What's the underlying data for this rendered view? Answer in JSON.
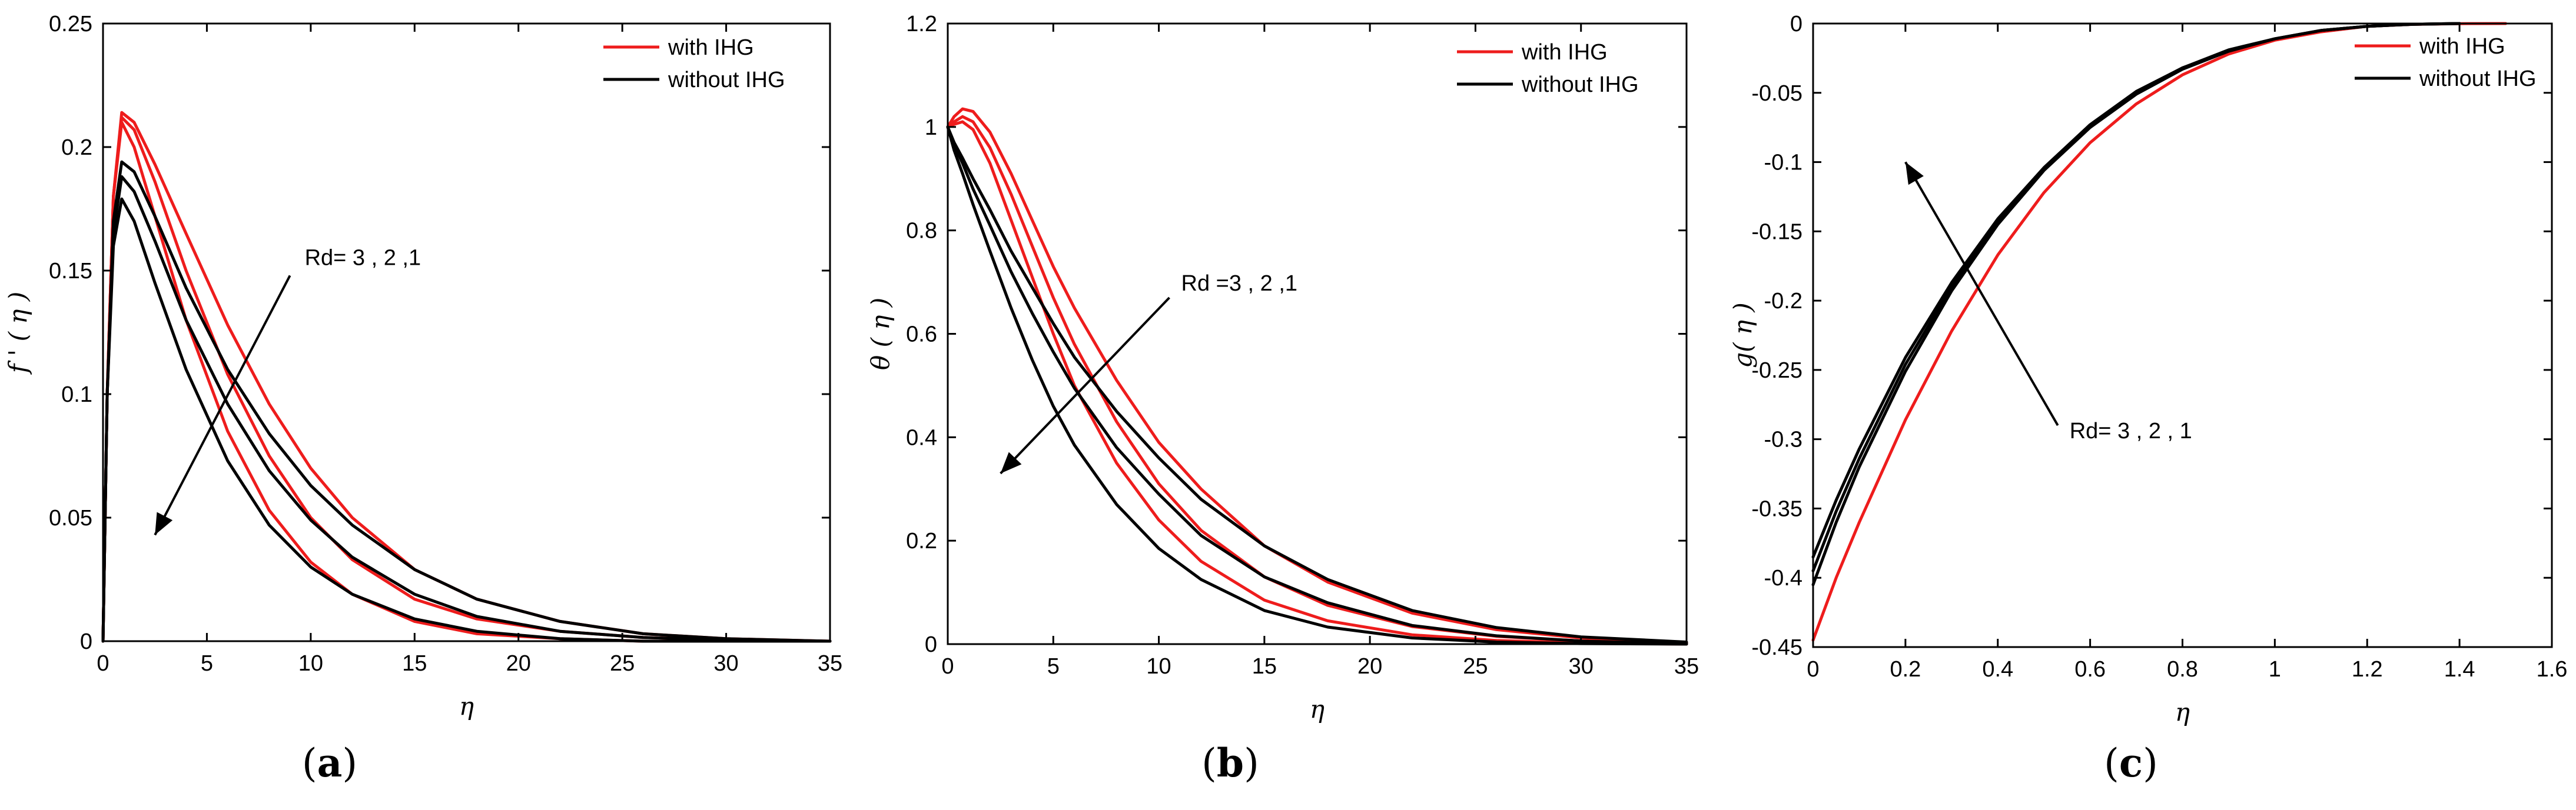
{
  "chart_data": [
    {
      "panel": "a",
      "type": "line",
      "caption_letter": "a",
      "xlabel": "η",
      "ylabel": "f ' ( η )",
      "xlim": [
        0,
        35
      ],
      "ylim": [
        0,
        0.25
      ],
      "xticks": [
        0,
        5,
        10,
        15,
        20,
        25,
        30,
        35
      ],
      "yticks": [
        0,
        0.05,
        0.1,
        0.15,
        0.2,
        0.25
      ],
      "legend": [
        {
          "label": "with IHG",
          "color": "#ee1c1c"
        },
        {
          "label": "without IHG",
          "color": "#000000"
        }
      ],
      "annotation": {
        "text": "Rd= 3 , 2 ,1",
        "arrow_from": [
          9.0,
          0.148
        ],
        "arrow_to": [
          2.5,
          0.043
        ]
      },
      "series": [
        {
          "name": "with IHG, Rd=3",
          "color": "#ee1c1c",
          "x": [
            0,
            0.2,
            0.5,
            0.9,
            1.5,
            2.5,
            4,
            6,
            8,
            10,
            12,
            15,
            18,
            22,
            26,
            30,
            35
          ],
          "y": [
            0,
            0.1,
            0.18,
            0.214,
            0.21,
            0.193,
            0.165,
            0.128,
            0.096,
            0.07,
            0.05,
            0.029,
            0.017,
            0.008,
            0.003,
            0.001,
            0
          ]
        },
        {
          "name": "with IHG, Rd=2",
          "color": "#ee1c1c",
          "x": [
            0,
            0.2,
            0.5,
            0.9,
            1.5,
            2.5,
            4,
            6,
            8,
            10,
            12,
            15,
            18,
            22,
            26,
            30,
            35
          ],
          "y": [
            0,
            0.1,
            0.18,
            0.212,
            0.207,
            0.186,
            0.15,
            0.108,
            0.075,
            0.05,
            0.033,
            0.017,
            0.009,
            0.004,
            0.0015,
            0.0005,
            0
          ]
        },
        {
          "name": "with IHG, Rd=1",
          "color": "#ee1c1c",
          "x": [
            0,
            0.2,
            0.5,
            0.9,
            1.5,
            2.5,
            4,
            6,
            8,
            10,
            12,
            15,
            18,
            22,
            26,
            30,
            35
          ],
          "y": [
            0,
            0.1,
            0.18,
            0.21,
            0.2,
            0.172,
            0.13,
            0.085,
            0.053,
            0.032,
            0.019,
            0.008,
            0.003,
            0.001,
            0,
            0,
            0
          ]
        },
        {
          "name": "without IHG, Rd=3",
          "color": "#000000",
          "x": [
            0,
            0.2,
            0.5,
            0.9,
            1.5,
            2.5,
            4,
            6,
            8,
            10,
            12,
            15,
            18,
            22,
            26,
            30,
            35
          ],
          "y": [
            0,
            0.1,
            0.17,
            0.194,
            0.19,
            0.172,
            0.143,
            0.11,
            0.084,
            0.063,
            0.047,
            0.029,
            0.017,
            0.008,
            0.003,
            0.001,
            0
          ]
        },
        {
          "name": "without IHG, Rd=2",
          "color": "#000000",
          "x": [
            0,
            0.2,
            0.5,
            0.9,
            1.5,
            2.5,
            4,
            6,
            8,
            10,
            12,
            15,
            18,
            22,
            26,
            30,
            35
          ],
          "y": [
            0,
            0.1,
            0.165,
            0.188,
            0.182,
            0.162,
            0.13,
            0.096,
            0.069,
            0.049,
            0.034,
            0.019,
            0.01,
            0.004,
            0.0015,
            0.0005,
            0
          ]
        },
        {
          "name": "without IHG, Rd=1",
          "color": "#000000",
          "x": [
            0,
            0.2,
            0.5,
            0.9,
            1.5,
            2.5,
            4,
            6,
            8,
            10,
            12,
            15,
            18,
            22,
            26,
            30,
            35
          ],
          "y": [
            0,
            0.1,
            0.16,
            0.179,
            0.17,
            0.145,
            0.11,
            0.073,
            0.047,
            0.03,
            0.019,
            0.009,
            0.004,
            0.001,
            0,
            0,
            0
          ]
        }
      ]
    },
    {
      "panel": "b",
      "type": "line",
      "caption_letter": "b",
      "xlabel": "η",
      "ylabel": "θ ( η )",
      "xlim": [
        0,
        35
      ],
      "ylim": [
        0,
        1.2
      ],
      "xticks": [
        0,
        5,
        10,
        15,
        20,
        25,
        30,
        35
      ],
      "yticks": [
        0,
        0.2,
        0.4,
        0.6,
        0.8,
        1,
        1.2
      ],
      "legend": [
        {
          "label": "with IHG",
          "color": "#ee1c1c"
        },
        {
          "label": "without IHG",
          "color": "#000000"
        }
      ],
      "annotation": {
        "text": "Rd =3 , 2 ,1",
        "arrow_from": [
          10.5,
          0.67
        ],
        "arrow_to": [
          2.5,
          0.33
        ]
      },
      "series": [
        {
          "name": "with IHG, Rd=3",
          "color": "#ee1c1c",
          "x": [
            0,
            0.3,
            0.7,
            1.2,
            2,
            3,
            4,
            5,
            6,
            8,
            10,
            12,
            15,
            18,
            22,
            26,
            30,
            35
          ],
          "y": [
            1.0,
            1.02,
            1.035,
            1.03,
            0.99,
            0.91,
            0.82,
            0.73,
            0.65,
            0.51,
            0.39,
            0.3,
            0.19,
            0.12,
            0.06,
            0.028,
            0.012,
            0.003
          ]
        },
        {
          "name": "with IHG, Rd=2",
          "color": "#ee1c1c",
          "x": [
            0,
            0.3,
            0.7,
            1.2,
            2,
            3,
            4,
            5,
            6,
            8,
            10,
            12,
            15,
            18,
            22,
            26,
            30,
            35
          ],
          "y": [
            1.0,
            1.01,
            1.02,
            1.01,
            0.96,
            0.87,
            0.77,
            0.67,
            0.58,
            0.43,
            0.31,
            0.22,
            0.13,
            0.075,
            0.034,
            0.015,
            0.006,
            0.001
          ]
        },
        {
          "name": "with IHG, Rd=1",
          "color": "#ee1c1c",
          "x": [
            0,
            0.3,
            0.7,
            1.2,
            2,
            3,
            4,
            5,
            6,
            8,
            10,
            12,
            15,
            18,
            22,
            26,
            30,
            35
          ],
          "y": [
            1.0,
            1.005,
            1.01,
            0.995,
            0.93,
            0.82,
            0.71,
            0.6,
            0.5,
            0.35,
            0.24,
            0.16,
            0.085,
            0.045,
            0.018,
            0.007,
            0.002,
            0
          ]
        },
        {
          "name": "without IHG, Rd=3",
          "color": "#000000",
          "x": [
            0,
            0.3,
            0.7,
            1.2,
            2,
            3,
            4,
            5,
            6,
            8,
            10,
            12,
            15,
            18,
            22,
            26,
            30,
            35
          ],
          "y": [
            1.0,
            0.97,
            0.94,
            0.9,
            0.84,
            0.76,
            0.69,
            0.62,
            0.555,
            0.45,
            0.36,
            0.28,
            0.19,
            0.125,
            0.065,
            0.032,
            0.014,
            0.004
          ]
        },
        {
          "name": "without IHG, Rd=2",
          "color": "#000000",
          "x": [
            0,
            0.3,
            0.7,
            1.2,
            2,
            3,
            4,
            5,
            6,
            8,
            10,
            12,
            15,
            18,
            22,
            26,
            30,
            35
          ],
          "y": [
            1.0,
            0.965,
            0.93,
            0.88,
            0.81,
            0.72,
            0.64,
            0.565,
            0.495,
            0.38,
            0.29,
            0.21,
            0.13,
            0.08,
            0.036,
            0.016,
            0.006,
            0.001
          ]
        },
        {
          "name": "without IHG, Rd=1",
          "color": "#000000",
          "x": [
            0,
            0.3,
            0.7,
            1.2,
            2,
            3,
            4,
            5,
            6,
            8,
            10,
            12,
            15,
            18,
            22,
            26,
            30,
            35
          ],
          "y": [
            1.0,
            0.955,
            0.91,
            0.85,
            0.76,
            0.65,
            0.55,
            0.46,
            0.385,
            0.27,
            0.185,
            0.125,
            0.065,
            0.033,
            0.012,
            0.004,
            0.001,
            0
          ]
        }
      ]
    },
    {
      "panel": "c",
      "type": "line",
      "caption_letter": "c",
      "xlabel": "η",
      "ylabel": "g( η )",
      "xlim": [
        0,
        1.6
      ],
      "ylim": [
        -0.45,
        0
      ],
      "xticks": [
        0,
        0.2,
        0.4,
        0.6,
        0.8,
        1,
        1.2,
        1.4,
        1.6
      ],
      "yticks": [
        -0.45,
        -0.4,
        -0.35,
        -0.3,
        -0.25,
        -0.2,
        -0.15,
        -0.1,
        -0.05,
        0
      ],
      "legend": [
        {
          "label": "with IHG",
          "color": "#ee1c1c"
        },
        {
          "label": "without IHG",
          "color": "#000000"
        }
      ],
      "annotation": {
        "text": "Rd= 3 , 2 , 1",
        "arrow_from": [
          0.53,
          -0.29
        ],
        "arrow_to": [
          0.2,
          -0.1
        ]
      },
      "series": [
        {
          "name": "with IHG",
          "color": "#ee1c1c",
          "x": [
            0,
            0.05,
            0.1,
            0.2,
            0.3,
            0.4,
            0.5,
            0.6,
            0.7,
            0.8,
            0.9,
            1.0,
            1.1,
            1.2,
            1.3,
            1.4,
            1.5
          ],
          "y": [
            -0.445,
            -0.4,
            -0.36,
            -0.286,
            -0.222,
            -0.167,
            -0.122,
            -0.086,
            -0.058,
            -0.037,
            -0.022,
            -0.012,
            -0.006,
            -0.002,
            -0.0006,
            -0.0001,
            0
          ]
        },
        {
          "name": "without IHG, Rd=3",
          "color": "#000000",
          "x": [
            0,
            0.05,
            0.1,
            0.2,
            0.3,
            0.4,
            0.5,
            0.6,
            0.7,
            0.8,
            0.9,
            1.0,
            1.1,
            1.2,
            1.3,
            1.4
          ],
          "y": [
            -0.405,
            -0.36,
            -0.32,
            -0.251,
            -0.193,
            -0.145,
            -0.106,
            -0.075,
            -0.051,
            -0.033,
            -0.02,
            -0.011,
            -0.005,
            -0.002,
            -0.0005,
            0
          ]
        },
        {
          "name": "without IHG, Rd=2",
          "color": "#000000",
          "x": [
            0,
            0.05,
            0.1,
            0.2,
            0.3,
            0.4,
            0.5,
            0.6,
            0.7,
            0.8,
            0.9,
            1.0,
            1.1,
            1.2,
            1.3,
            1.4
          ],
          "y": [
            -0.395,
            -0.352,
            -0.314,
            -0.246,
            -0.19,
            -0.143,
            -0.105,
            -0.074,
            -0.05,
            -0.032,
            -0.02,
            -0.011,
            -0.005,
            -0.002,
            -0.0005,
            0
          ]
        },
        {
          "name": "without IHG, Rd=1",
          "color": "#000000",
          "x": [
            0,
            0.05,
            0.1,
            0.2,
            0.3,
            0.4,
            0.5,
            0.6,
            0.7,
            0.8,
            0.9,
            1.0,
            1.1,
            1.2,
            1.3,
            1.4
          ],
          "y": [
            -0.385,
            -0.344,
            -0.307,
            -0.241,
            -0.187,
            -0.141,
            -0.104,
            -0.073,
            -0.049,
            -0.032,
            -0.019,
            -0.011,
            -0.005,
            -0.002,
            -0.0005,
            0
          ]
        }
      ]
    }
  ]
}
